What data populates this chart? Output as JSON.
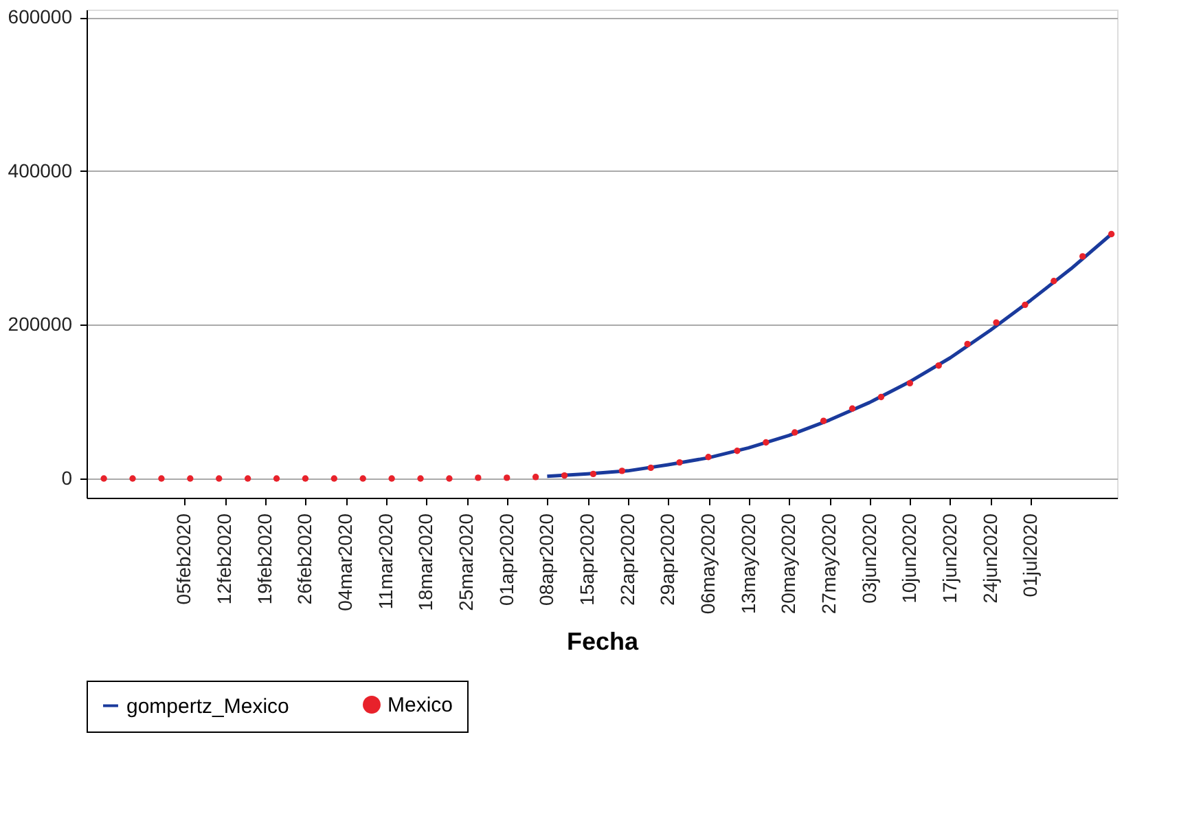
{
  "chart_data": {
    "type": "line",
    "xlabel": "Fecha",
    "xlim": [
      "2020-01-19",
      "2020-07-16"
    ],
    "xticks": [
      {
        "value": "2020-02-05",
        "label": "05feb2020"
      },
      {
        "value": "2020-02-12",
        "label": "12feb2020"
      },
      {
        "value": "2020-02-19",
        "label": "19feb2020"
      },
      {
        "value": "2020-02-26",
        "label": "26feb2020"
      },
      {
        "value": "2020-03-04",
        "label": "04mar2020"
      },
      {
        "value": "2020-03-11",
        "label": "11mar2020"
      },
      {
        "value": "2020-03-18",
        "label": "18mar2020"
      },
      {
        "value": "2020-03-25",
        "label": "25mar2020"
      },
      {
        "value": "2020-04-01",
        "label": "01apr2020"
      },
      {
        "value": "2020-04-08",
        "label": "08apr2020"
      },
      {
        "value": "2020-04-15",
        "label": "15apr2020"
      },
      {
        "value": "2020-04-22",
        "label": "22apr2020"
      },
      {
        "value": "2020-04-29",
        "label": "29apr2020"
      },
      {
        "value": "2020-05-06",
        "label": "06may2020"
      },
      {
        "value": "2020-05-13",
        "label": "13may2020"
      },
      {
        "value": "2020-05-20",
        "label": "20may2020"
      },
      {
        "value": "2020-05-27",
        "label": "27may2020"
      },
      {
        "value": "2020-06-03",
        "label": "03jun2020"
      },
      {
        "value": "2020-06-10",
        "label": "10jun2020"
      },
      {
        "value": "2020-06-17",
        "label": "17jun2020"
      },
      {
        "value": "2020-06-24",
        "label": "24jun2020"
      },
      {
        "value": "2020-07-01",
        "label": "01jul2020"
      }
    ],
    "ylim": [
      -25000,
      610000
    ],
    "yticks": [
      0,
      200000,
      400000,
      600000
    ],
    "grid": "y",
    "legend": "bottom",
    "series": [
      {
        "name": "gompertz_Mexico",
        "type": "line",
        "color": "#1a3a9c",
        "line_style": "solid",
        "x": [
          "2020-04-08",
          "2020-04-15",
          "2020-04-22",
          "2020-04-29",
          "2020-05-06",
          "2020-05-13",
          "2020-05-20",
          "2020-05-27",
          "2020-06-03",
          "2020-06-10",
          "2020-06-17",
          "2020-06-24",
          "2020-07-01",
          "2020-07-08",
          "2020-07-15"
        ],
        "values": [
          3000,
          6000,
          10000,
          18000,
          27000,
          40000,
          56000,
          76000,
          99000,
          126000,
          157000,
          193000,
          232000,
          273000,
          318000
        ]
      },
      {
        "name": "Mexico",
        "type": "scatter",
        "color": "#e8222b",
        "marker": "circle",
        "x": [
          "2020-01-22",
          "2020-01-27",
          "2020-02-01",
          "2020-02-06",
          "2020-02-11",
          "2020-02-16",
          "2020-02-21",
          "2020-02-26",
          "2020-03-02",
          "2020-03-07",
          "2020-03-12",
          "2020-03-17",
          "2020-03-22",
          "2020-03-27",
          "2020-04-01",
          "2020-04-06",
          "2020-04-11",
          "2020-04-16",
          "2020-04-21",
          "2020-04-26",
          "2020-05-01",
          "2020-05-06",
          "2020-05-11",
          "2020-05-16",
          "2020-05-21",
          "2020-05-26",
          "2020-05-31",
          "2020-06-05",
          "2020-06-10",
          "2020-06-15",
          "2020-06-20",
          "2020-06-25",
          "2020-06-30",
          "2020-07-05",
          "2020-07-10",
          "2020-07-15"
        ],
        "values": [
          0,
          0,
          0,
          0,
          0,
          0,
          0,
          0,
          0,
          0,
          0,
          0,
          0,
          1000,
          1000,
          2000,
          4000,
          6000,
          10000,
          14000,
          21000,
          28000,
          36000,
          47000,
          60000,
          75000,
          91000,
          106000,
          124000,
          147000,
          175000,
          203000,
          226000,
          257000,
          289000,
          318000
        ]
      }
    ]
  }
}
